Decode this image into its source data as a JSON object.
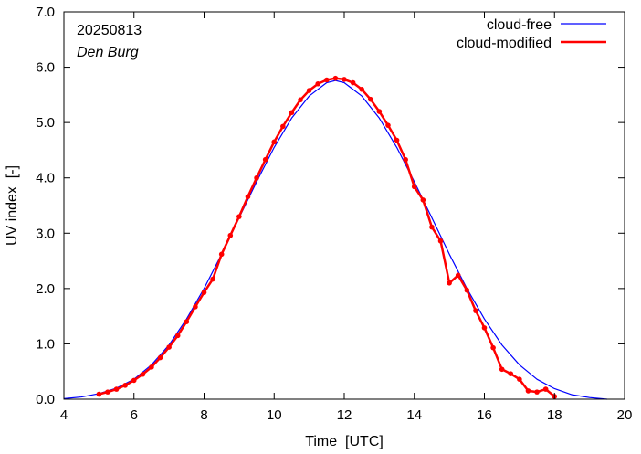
{
  "chart_data": {
    "type": "line",
    "title": "",
    "xlabel": "Time  [UTC]",
    "ylabel": "UV index  [-]",
    "xlim": [
      4,
      20
    ],
    "ylim": [
      0,
      7
    ],
    "xticks": [
      "4",
      "6",
      "8",
      "10",
      "12",
      "14",
      "16",
      "18",
      "20"
    ],
    "yticks": [
      "0.0",
      "1.0",
      "2.0",
      "3.0",
      "4.0",
      "5.0",
      "6.0",
      "7.0"
    ],
    "grid": false,
    "legend_position": "top-right",
    "annotations": {
      "date": "20250813",
      "station": "Den Burg"
    },
    "series": [
      {
        "name": "cloud-free",
        "color": "#0000ff",
        "markers": false,
        "x": [
          4.0,
          4.5,
          5.0,
          5.5,
          6.0,
          6.5,
          7.0,
          7.5,
          8.0,
          8.5,
          9.0,
          9.5,
          10.0,
          10.5,
          11.0,
          11.5,
          11.75,
          12.0,
          12.5,
          13.0,
          13.5,
          14.0,
          14.5,
          15.0,
          15.5,
          16.0,
          16.5,
          17.0,
          17.5,
          18.0,
          18.5,
          19.0,
          19.5
        ],
        "y": [
          0.01,
          0.04,
          0.1,
          0.2,
          0.36,
          0.62,
          0.98,
          1.45,
          2.0,
          2.62,
          3.28,
          3.93,
          4.55,
          5.08,
          5.48,
          5.72,
          5.76,
          5.72,
          5.48,
          5.08,
          4.55,
          3.93,
          3.28,
          2.62,
          2.0,
          1.45,
          0.98,
          0.62,
          0.36,
          0.19,
          0.08,
          0.03,
          0.0
        ]
      },
      {
        "name": "cloud-modified",
        "color": "#ff0000",
        "markers": true,
        "x": [
          5.0,
          5.25,
          5.5,
          5.75,
          6.0,
          6.25,
          6.5,
          6.75,
          7.0,
          7.25,
          7.5,
          7.75,
          8.0,
          8.25,
          8.5,
          8.75,
          9.0,
          9.25,
          9.5,
          9.75,
          10.0,
          10.25,
          10.5,
          10.75,
          11.0,
          11.25,
          11.5,
          11.75,
          12.0,
          12.25,
          12.5,
          12.75,
          13.0,
          13.25,
          13.5,
          13.75,
          14.0,
          14.25,
          14.5,
          14.75,
          15.0,
          15.25,
          15.5,
          15.75,
          16.0,
          16.25,
          16.5,
          16.75,
          17.0,
          17.25,
          17.5,
          17.75,
          18.0
        ],
        "y": [
          0.09,
          0.13,
          0.18,
          0.25,
          0.34,
          0.45,
          0.58,
          0.75,
          0.94,
          1.15,
          1.4,
          1.67,
          1.93,
          2.17,
          2.62,
          2.96,
          3.3,
          3.66,
          4.0,
          4.33,
          4.65,
          4.93,
          5.18,
          5.41,
          5.58,
          5.7,
          5.77,
          5.8,
          5.78,
          5.72,
          5.6,
          5.42,
          5.2,
          4.95,
          4.68,
          4.33,
          3.84,
          3.6,
          3.11,
          2.86,
          2.1,
          2.24,
          1.97,
          1.6,
          1.29,
          0.93,
          0.54,
          0.46,
          0.36,
          0.15,
          0.13,
          0.18,
          0.05
        ]
      }
    ]
  }
}
